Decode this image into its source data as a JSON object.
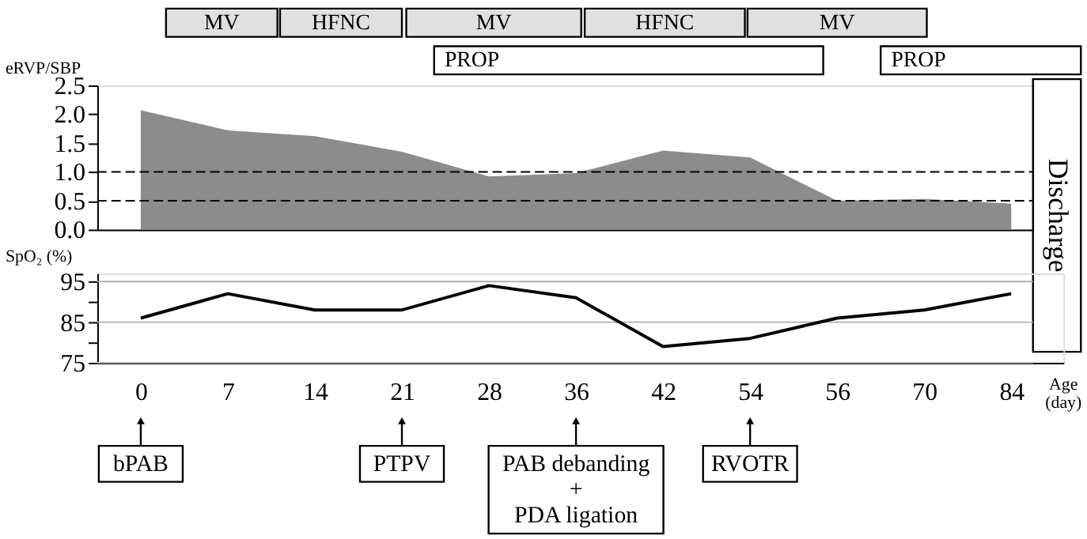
{
  "chart_data": [
    {
      "type": "area",
      "ylabel": "eRVP/SBP",
      "categories": [
        "0",
        "7",
        "14",
        "21",
        "28",
        "36",
        "42",
        "54",
        "56",
        "70",
        "84"
      ],
      "series": [
        {
          "color": "#8c8c8c",
          "values": [
            2.07,
            1.72,
            1.62,
            1.35,
            0.92,
            0.98,
            1.37,
            1.25,
            0.5,
            0.53,
            0.45
          ]
        }
      ],
      "ylim": [
        0,
        2.5
      ],
      "yticks": [
        {
          "value": 0,
          "label": "0.0"
        },
        {
          "value": 0.5,
          "label": "0.5"
        },
        {
          "value": 1,
          "label": "1.0"
        },
        {
          "value": 1.5,
          "label": "1.5"
        },
        {
          "value": 2,
          "label": "2.0"
        },
        {
          "value": 2.5,
          "label": "2.5"
        }
      ],
      "ref_lines": [
        {
          "axis": "y",
          "value": 1.0,
          "color": "#000000",
          "line_style": "dashed"
        },
        {
          "axis": "y",
          "value": 0.5,
          "color": "#000000",
          "line_style": "dashed"
        }
      ],
      "annotations": [
        "MV",
        "HFNC",
        "MV",
        "HFNC",
        "MV",
        "PROP",
        "PROP",
        "Discharge"
      ],
      "tick_labels": "y",
      "grid": false,
      "legend": false
    },
    {
      "type": "line",
      "ylabel": "SpO₂ (%)",
      "xlabel": "Age (day)",
      "categories": [
        "0",
        "7",
        "14",
        "21",
        "28",
        "36",
        "42",
        "54",
        "56",
        "70",
        "84"
      ],
      "series": [
        {
          "color": "#000000",
          "values": [
            86,
            92,
            88,
            88,
            94,
            91,
            79,
            81,
            86,
            88,
            92
          ]
        }
      ],
      "ylim": [
        75,
        97
      ],
      "yticks": [
        75,
        {
          "value": 80,
          "label": null
        },
        85,
        {
          "value": 90,
          "label": null
        },
        95
      ],
      "annotations": [
        {
          "text": "bPAB",
          "x": "0"
        },
        {
          "text": "PTPV",
          "x": "21"
        },
        {
          "text": "PAB debanding\n+\nPDA ligation",
          "x": "36"
        },
        {
          "text": "RVOTR",
          "x": "54"
        }
      ],
      "grid": "y",
      "legend": false
    }
  ]
}
